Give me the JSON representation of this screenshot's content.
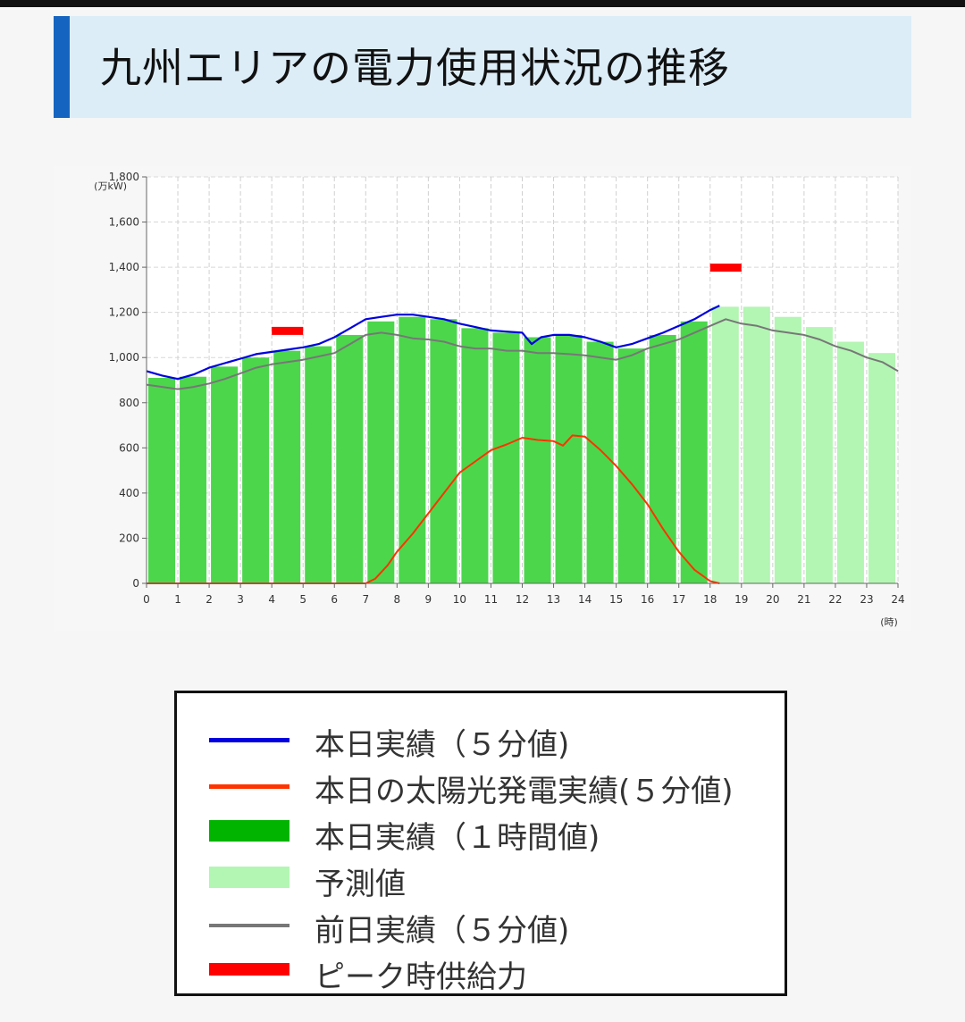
{
  "header": {
    "title": "九州エリアの電力使用状況の推移"
  },
  "chart_data": {
    "type": "bar",
    "ylabel": "(万kW)",
    "xlabel": "(時)",
    "ylim": [
      0,
      1800
    ],
    "xlim": [
      0,
      24
    ],
    "y_ticks": [
      "0",
      "200",
      "400",
      "600",
      "800",
      "1,000",
      "1,200",
      "1,400",
      "1,600",
      "1,800"
    ],
    "y_tick_values": [
      0,
      200,
      400,
      600,
      800,
      1000,
      1200,
      1400,
      1600,
      1800
    ],
    "x_ticks": [
      "0",
      "1",
      "2",
      "3",
      "4",
      "5",
      "6",
      "7",
      "8",
      "9",
      "10",
      "11",
      "12",
      "13",
      "14",
      "15",
      "16",
      "17",
      "18",
      "19",
      "20",
      "21",
      "22",
      "23",
      "24"
    ],
    "grid": true,
    "hourly_actual": {
      "name": "本日実績（１時間値）",
      "color": "#4cd64c",
      "values": [
        910,
        915,
        960,
        1000,
        1030,
        1050,
        1100,
        1160,
        1180,
        1170,
        1130,
        1110,
        1090,
        1100,
        1070,
        1040,
        1100,
        1160
      ]
    },
    "forecast": {
      "name": "予測値",
      "color": "#b3f5b3",
      "start_hour": 18,
      "values": [
        1225,
        1225,
        1180,
        1135,
        1070,
        1020
      ]
    },
    "today_5min": {
      "name": "本日実績（５分値）",
      "color": "#0000e0",
      "x": [
        0,
        0.5,
        1,
        1.5,
        2,
        2.5,
        3,
        3.5,
        4,
        4.5,
        5,
        5.5,
        6,
        6.5,
        7,
        7.5,
        8,
        8.5,
        9,
        9.5,
        10,
        10.5,
        11,
        11.5,
        12,
        12.3,
        12.6,
        13,
        13.5,
        14,
        14.5,
        15,
        15.5,
        16,
        16.5,
        17,
        17.5,
        18,
        18.3
      ],
      "y": [
        940,
        920,
        905,
        925,
        955,
        975,
        995,
        1015,
        1025,
        1035,
        1045,
        1060,
        1090,
        1130,
        1170,
        1180,
        1190,
        1190,
        1180,
        1170,
        1150,
        1135,
        1120,
        1115,
        1110,
        1060,
        1090,
        1100,
        1100,
        1090,
        1070,
        1045,
        1060,
        1085,
        1110,
        1140,
        1170,
        1210,
        1230
      ]
    },
    "solar_5min": {
      "name": "本日の太陽光発電実績(５分値)",
      "color": "#ff3300",
      "x": [
        0,
        7,
        7.3,
        7.7,
        8,
        8.5,
        9,
        9.5,
        10,
        10.5,
        11,
        11.5,
        12,
        12.5,
        13,
        13.3,
        13.6,
        14,
        14.5,
        15,
        15.5,
        16,
        16.5,
        17,
        17.5,
        18,
        18.3
      ],
      "y": [
        0,
        0,
        20,
        80,
        140,
        220,
        310,
        400,
        490,
        540,
        590,
        615,
        645,
        635,
        630,
        610,
        655,
        650,
        590,
        520,
        440,
        350,
        240,
        140,
        60,
        10,
        0
      ]
    },
    "yesterday_5min": {
      "name": "前日実績（５分値）",
      "color": "#777777",
      "x": [
        0,
        0.5,
        1,
        1.5,
        2,
        2.5,
        3,
        3.5,
        4,
        4.5,
        5,
        5.5,
        6,
        6.5,
        7,
        7.5,
        8,
        8.5,
        9,
        9.5,
        10,
        10.5,
        11,
        11.5,
        12,
        12.5,
        13,
        13.5,
        14,
        14.5,
        15,
        15.5,
        16,
        16.5,
        17,
        17.5,
        18,
        18.5,
        19,
        19.5,
        20,
        20.5,
        21,
        21.5,
        22,
        22.5,
        23,
        23.5,
        24
      ],
      "y": [
        880,
        870,
        860,
        870,
        885,
        905,
        930,
        955,
        970,
        980,
        990,
        1005,
        1020,
        1060,
        1100,
        1110,
        1100,
        1085,
        1080,
        1070,
        1050,
        1040,
        1040,
        1030,
        1030,
        1020,
        1020,
        1015,
        1010,
        1000,
        990,
        1010,
        1040,
        1060,
        1080,
        1110,
        1140,
        1170,
        1150,
        1140,
        1120,
        1110,
        1100,
        1080,
        1050,
        1030,
        1000,
        980,
        940
      ]
    },
    "peak_supply": {
      "name": "ピーク時供給力",
      "color": "#ff0000",
      "segments": [
        {
          "x_start": 4,
          "x_end": 5,
          "value": 1120
        },
        {
          "x_start": 18,
          "x_end": 19,
          "value": 1400
        }
      ]
    }
  },
  "legend": {
    "items": [
      {
        "label": "本日実績（５分値)",
        "swatch": "line",
        "color": "#0000e0"
      },
      {
        "label": "本日の太陽光発電実績(５分値)",
        "swatch": "line",
        "color": "#ff3300"
      },
      {
        "label": "本日実績（１時間値)",
        "swatch": "block",
        "color": "#00b400"
      },
      {
        "label": "予測値",
        "swatch": "block",
        "color": "#b3f5b3"
      },
      {
        "label": "前日実績（５分値)",
        "swatch": "line",
        "color": "#777777"
      },
      {
        "label": "ピーク時供給力",
        "swatch": "block",
        "color": "#ff0000"
      }
    ]
  }
}
